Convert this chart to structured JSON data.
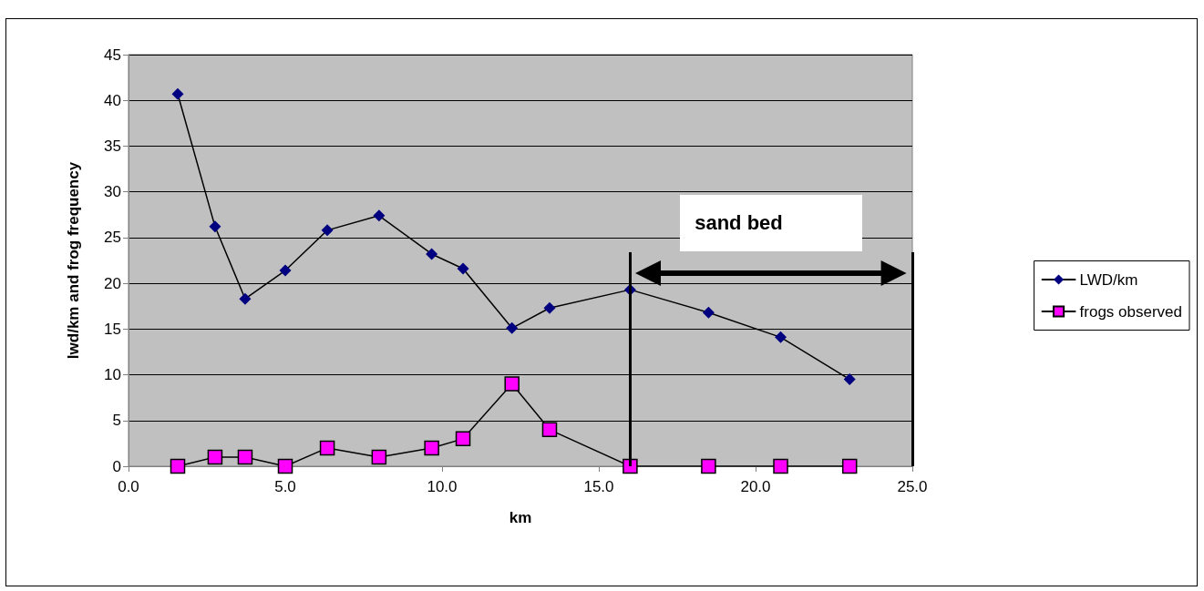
{
  "chart_data": {
    "type": "line",
    "xlabel": "km",
    "ylabel": "lwd/km and frog frequency",
    "x": [
      1.57,
      2.76,
      3.72,
      5.0,
      6.34,
      7.99,
      9.67,
      10.67,
      12.23,
      13.43,
      16.0,
      18.5,
      20.8,
      23.0
    ],
    "series": [
      {
        "name": "LWD/km",
        "color": "#000080",
        "marker": "diamond",
        "values": [
          40.7,
          26.2,
          18.3,
          21.4,
          25.8,
          27.4,
          23.2,
          21.6,
          15.1,
          17.3,
          19.3,
          16.8,
          14.1,
          9.5
        ]
      },
      {
        "name": "frogs observed",
        "color": "#ff00ff",
        "marker": "square",
        "values": [
          0,
          1,
          1,
          0,
          2,
          1,
          2,
          3,
          9,
          4,
          0,
          0,
          0,
          0
        ]
      }
    ],
    "xlim": [
      0,
      25
    ],
    "xticks": [
      {
        "value": 0,
        "label": "0.0"
      },
      {
        "value": 5,
        "label": "5.0"
      },
      {
        "value": 10,
        "label": "10.0"
      },
      {
        "value": 15,
        "label": "15.0"
      },
      {
        "value": 20,
        "label": "20.0"
      },
      {
        "value": 25,
        "label": "25.0"
      }
    ],
    "ylim": [
      0,
      45
    ],
    "yticks": [
      0,
      5,
      10,
      15,
      20,
      25,
      30,
      35,
      40,
      45
    ],
    "ref_lines": [
      {
        "axis": "x",
        "value": 16.0
      },
      {
        "axis": "x",
        "value": 25.0
      }
    ],
    "annotations": [
      "sand bed"
    ],
    "grid": "y",
    "legend": "right",
    "line_style": "solid"
  }
}
